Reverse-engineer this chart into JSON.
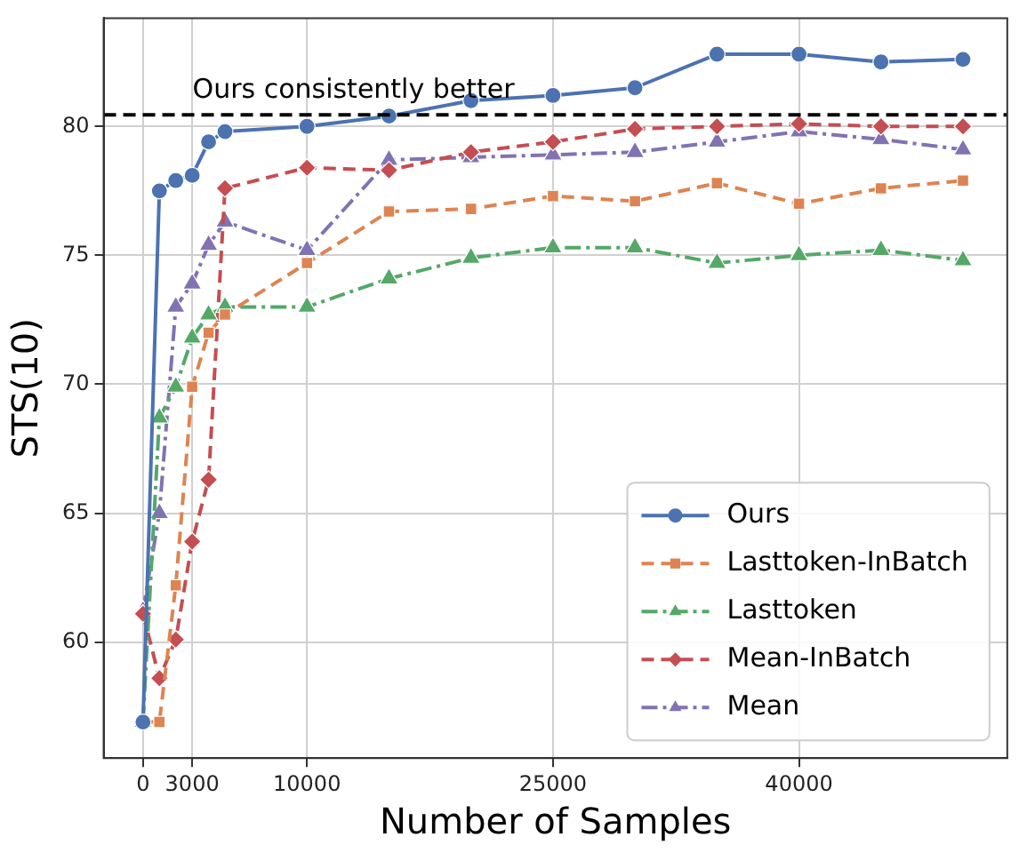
{
  "chart_data": {
    "type": "line",
    "xlabel": "Number of Samples",
    "ylabel": "STS(10)",
    "x": [
      0,
      1000,
      2000,
      3000,
      4000,
      5000,
      10000,
      15000,
      20000,
      25000,
      30000,
      35000,
      40000,
      45000,
      50000
    ],
    "series": [
      {
        "name": "Ours",
        "color": "#4c72b0",
        "marker": "circle",
        "line_style": "solid",
        "values": [
          56.9,
          77.5,
          77.9,
          78.1,
          79.4,
          79.8,
          80.0,
          80.4,
          81.0,
          81.2,
          81.5,
          82.8,
          82.8,
          82.5,
          82.6
        ]
      },
      {
        "name": "Lasttoken-InBatch",
        "color": "#dd8452",
        "marker": "square",
        "line_style": "dashed",
        "values": [
          56.9,
          56.9,
          62.2,
          69.9,
          72.0,
          72.7,
          74.7,
          76.7,
          76.8,
          77.3,
          77.1,
          77.8,
          77.0,
          77.6,
          77.9
        ]
      },
      {
        "name": "Lasttoken",
        "color": "#55a868",
        "marker": "triangle",
        "line_style": "dashdot",
        "values": [
          56.9,
          68.7,
          69.9,
          71.8,
          72.7,
          73.0,
          73.0,
          74.1,
          74.9,
          75.3,
          75.3,
          74.7,
          75.0,
          75.2,
          74.8
        ]
      },
      {
        "name": "Mean-InBatch",
        "color": "#c44e52",
        "marker": "diamond",
        "line_style": "dashed",
        "values": [
          61.1,
          58.6,
          60.1,
          63.9,
          66.3,
          77.6,
          78.4,
          78.3,
          79.0,
          79.4,
          79.9,
          80.0,
          80.1,
          80.0,
          80.0
        ]
      },
      {
        "name": "Mean",
        "color": "#8172b3",
        "marker": "triangle",
        "line_style": "dashdot",
        "values": [
          61.2,
          65.0,
          73.0,
          73.9,
          75.4,
          76.3,
          75.2,
          78.7,
          78.8,
          78.9,
          79.0,
          79.4,
          79.8,
          79.5,
          79.1
        ]
      }
    ],
    "xlim": [
      -2400,
      52700
    ],
    "xticks": [
      0,
      3000,
      10000,
      25000,
      40000
    ],
    "ylim": [
      55.5,
      84.2
    ],
    "yticks": [
      60,
      65,
      70,
      75,
      80
    ],
    "ref_lines": [
      {
        "axis": "y",
        "value": 80.45,
        "label": "Ours consistently better",
        "color": "#000000",
        "line_style": "dashed"
      }
    ],
    "grid": true,
    "legend": "bottom right"
  }
}
